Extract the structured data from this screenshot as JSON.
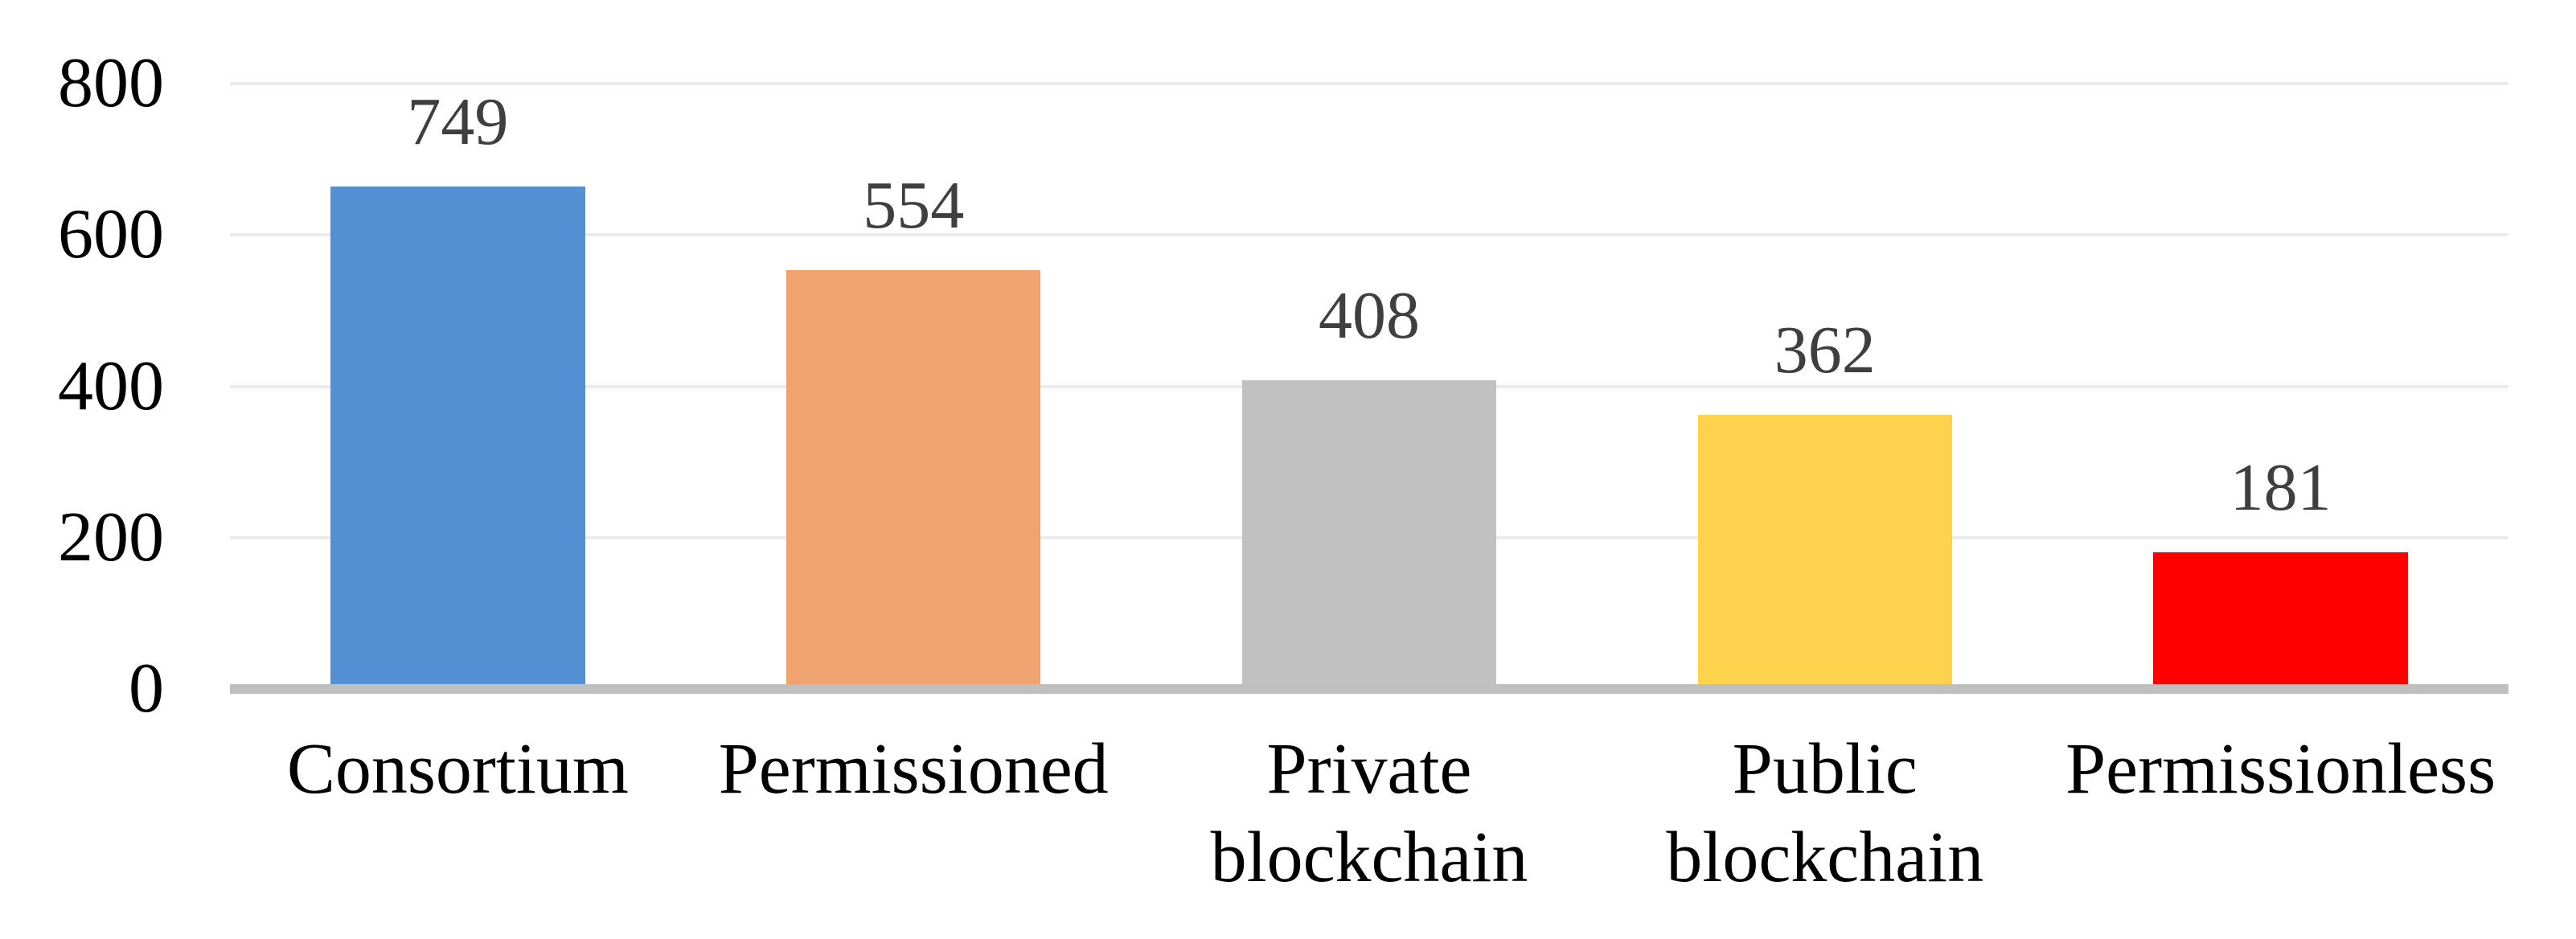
{
  "chart_data": {
    "type": "bar",
    "title": "",
    "xlabel": "",
    "ylabel": "",
    "categories": [
      "Consortium",
      "Permissioned",
      "Private blockchain",
      "Public blockchain",
      "Permissionless"
    ],
    "values": [
      749,
      554,
      408,
      362,
      181
    ],
    "data_labels": [
      "749",
      "554",
      "408",
      "362",
      "181"
    ],
    "bar_colors": [
      "#5590D4",
      "#F0A36E",
      "#C1C1C1",
      "#FFD24D",
      "#FF0000"
    ],
    "ylim": [
      0,
      800
    ],
    "yticks": [
      0,
      200,
      400,
      600,
      800
    ],
    "ytick_labels": [
      "0",
      "200",
      "400",
      "600",
      "800"
    ],
    "grid": true,
    "legend": false,
    "gridline_color": "#EBEBEB",
    "axis_line_color": "#BFBFBF",
    "value_label_color": "#3F3F3F",
    "tick_label_color": "#000000",
    "category_label_color": "#000000",
    "background_color": "#FFFFFF"
  }
}
